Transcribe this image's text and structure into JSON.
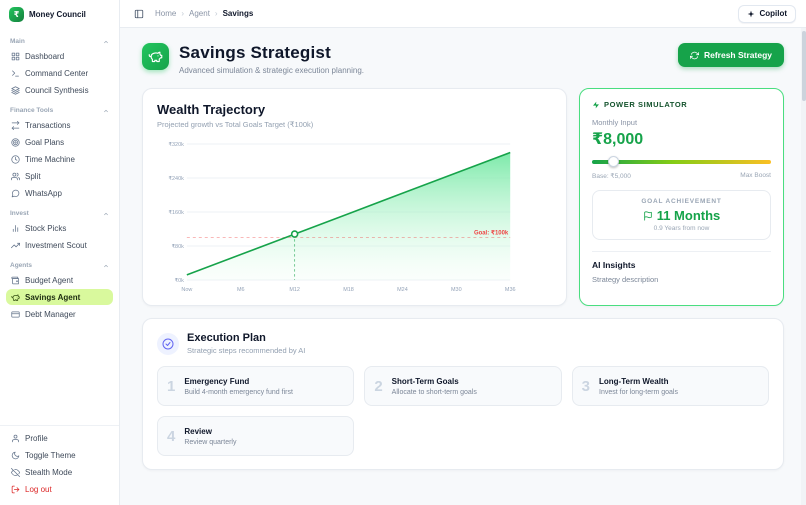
{
  "app": {
    "name": "Money Council"
  },
  "topbar": {
    "breadcrumb": [
      "Home",
      "Agent",
      "Savings"
    ],
    "copilot_label": "Copilot",
    "copilot_icon": "sparkle-icon",
    "toggle_icon": "panel-left-icon"
  },
  "sidebar": {
    "sections": [
      {
        "label": "Main",
        "items": [
          {
            "label": "Dashboard",
            "icon": "dashboard-icon"
          },
          {
            "label": "Command Center",
            "icon": "command-center-icon"
          },
          {
            "label": "Council Synthesis",
            "icon": "synthesis-icon"
          }
        ]
      },
      {
        "label": "Finance Tools",
        "items": [
          {
            "label": "Transactions",
            "icon": "transactions-icon"
          },
          {
            "label": "Goal Plans",
            "icon": "target-icon"
          },
          {
            "label": "Time Machine",
            "icon": "clock-icon"
          },
          {
            "label": "Split",
            "icon": "users-icon"
          },
          {
            "label": "WhatsApp",
            "icon": "chat-icon"
          }
        ]
      },
      {
        "label": "Invest",
        "items": [
          {
            "label": "Stock Picks",
            "icon": "bar-chart-icon"
          },
          {
            "label": "Investment Scout",
            "icon": "trending-up-icon"
          }
        ]
      },
      {
        "label": "Agents",
        "items": [
          {
            "label": "Budget Agent",
            "icon": "wallet-icon"
          },
          {
            "label": "Savings Agent",
            "icon": "piggy-bank-icon",
            "active": true
          },
          {
            "label": "Debt Manager",
            "icon": "credit-card-icon"
          }
        ]
      }
    ],
    "footer_items": [
      {
        "label": "Profile",
        "icon": "user-icon"
      },
      {
        "label": "Toggle Theme",
        "icon": "moon-icon"
      },
      {
        "label": "Stealth Mode",
        "icon": "eye-off-icon"
      },
      {
        "label": "Log out",
        "icon": "logout-icon",
        "danger": true
      }
    ]
  },
  "page_header": {
    "title": "Savings Strategist",
    "subtitle": "Advanced simulation & strategic execution planning.",
    "refresh_label": "Refresh Strategy",
    "refresh_icon": "refresh-icon",
    "badge_icon": "piggy-bank-icon"
  },
  "trajectory": {
    "title": "Wealth Trajectory",
    "subtitle": "Projected growth vs Total Goals Target (₹100k)"
  },
  "chart_data": {
    "type": "area",
    "title": "Wealth Trajectory",
    "x": [
      "Now",
      "M6",
      "M12",
      "M18",
      "M24",
      "M30",
      "M36"
    ],
    "values": [
      12,
      60,
      108,
      156,
      204,
      252,
      300
    ],
    "unit": "₹k",
    "y_ticks": [
      "₹0k",
      "₹80k",
      "₹160k",
      "₹240k",
      "₹320k"
    ],
    "ylim": [
      0,
      320
    ],
    "goal": 100,
    "goal_label": "Goal: ₹100k",
    "marker_x": "M12",
    "line_color": "#16a34a",
    "goal_color": "#ef4444",
    "grid": true,
    "legend": false
  },
  "simulator": {
    "header": "POWER SIMULATOR",
    "header_icon": "bolt-icon",
    "input_label": "Monthly Input",
    "input_value": "₹8,000",
    "slider_percent": 12,
    "slider_min_label": "Base: ₹5,000",
    "slider_max_label": "Max Boost",
    "goal_box": {
      "header": "GOAL ACHIEVEMENT",
      "icon": "flag-icon",
      "value": "11 Months",
      "sub": "0.9 Years from now"
    },
    "insights_title": "AI Insights",
    "insights_text": "Strategy description"
  },
  "execution": {
    "title": "Execution Plan",
    "subtitle": "Strategic steps recommended by AI",
    "badge_icon": "circle-check-icon",
    "steps": [
      {
        "num": "1",
        "title": "Emergency Fund",
        "desc": "Build 4-month emergency fund first"
      },
      {
        "num": "2",
        "title": "Short-Term Goals",
        "desc": "Allocate to short-term goals"
      },
      {
        "num": "3",
        "title": "Long-Term Wealth",
        "desc": "Invest for long-term goals"
      },
      {
        "num": "4",
        "title": "Review",
        "desc": "Review quarterly"
      }
    ]
  },
  "colors": {
    "accent": "#16a34a",
    "accent_light": "#d9f99d",
    "sim_border": "#4ade80",
    "danger": "#dc2626",
    "slider_from": "#16a34a",
    "slider_to": "#fbbf24"
  }
}
